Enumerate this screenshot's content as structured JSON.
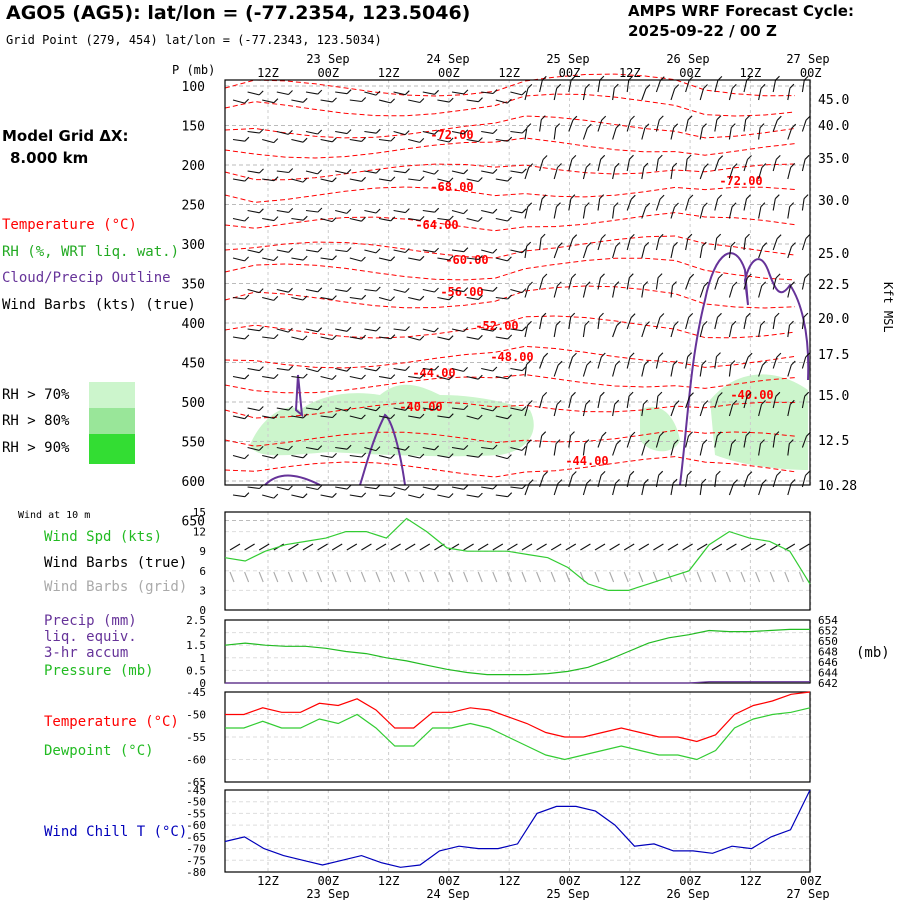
{
  "header": {
    "station": "AGO5 (AG5):  lat/lon = (-77.2354, 123.5046)",
    "gridpoint": "Grid Point (279, 454) lat/lon = (-77.2343, 123.5034)",
    "cycle_line1": "AMPS WRF Forecast Cycle:",
    "cycle_line2": "2025-09-22 / 00  Z"
  },
  "model": {
    "line1": "Model Grid ΔX:",
    "line2": "8.000 km"
  },
  "legend": {
    "temperature": "Temperature (°C)",
    "rh": "RH (%, WRT liq. wat.)",
    "cloud": "Cloud/Precip Outline",
    "wind": "Wind Barbs (kts) (true)",
    "rh70": "RH > 70%",
    "rh80": "RH > 80%",
    "rh90": "RH > 90%",
    "wind10m_title": "Wind at 10 m",
    "wind_spd": "Wind Spd (kts)",
    "wind_barbs_true": "Wind Barbs (true)",
    "wind_barbs_grid": "Wind Barbs (grid)",
    "precip1": "Precip (mm)",
    "precip2": "liq. equiv.",
    "precip3": "3-hr accum",
    "pressure": "Pressure (mb)",
    "mb_unit": "(mb)",
    "temp2": "Temperature (°C)",
    "dewpoint": "Dewpoint (°C)",
    "windchill": "Wind Chill T (°C)",
    "pmb_axis": "P (mb)",
    "kft_axis": "Kft MSL"
  },
  "colors": {
    "temperature": "#ff0000",
    "rh70": "#ccf5cc",
    "rh80": "#99e699",
    "rh90": "#33dd33",
    "cloud": "#663399",
    "wind_spd": "#33cc33",
    "grid_barbs": "#aaaaaa",
    "pressure": "#22bb22",
    "windchill": "#0000bb"
  },
  "time_axis": {
    "top_ticks": [
      "12Z",
      "00Z",
      "12Z",
      "00Z",
      "12Z",
      "00Z",
      "12Z",
      "00Z",
      "12Z",
      "00Z"
    ],
    "top_dates": [
      "23 Sep",
      "24 Sep",
      "25 Sep",
      "26 Sep",
      "27 Sep"
    ],
    "bottom_ticks": [
      "12Z",
      "00Z",
      "12Z",
      "00Z",
      "12Z",
      "00Z",
      "12Z",
      "00Z",
      "12Z",
      "00Z"
    ],
    "bottom_dates": [
      "23 Sep",
      "24 Sep",
      "25 Sep",
      "26 Sep",
      "27 Sep"
    ]
  },
  "chart_data": [
    {
      "type": "line",
      "name": "vertical profile",
      "p_levels": [
        "100",
        "150",
        "200",
        "250",
        "300",
        "350",
        "400",
        "450",
        "500",
        "550",
        "600",
        "650"
      ],
      "height_labels": [
        "45.0",
        "40.0",
        "35.0",
        "30.0",
        "25.0",
        "22.5",
        "20.0",
        "17.5",
        "15.0",
        "12.5",
        "10.28"
      ],
      "temperature_contour_labels": [
        "-72.00",
        "-68.00",
        "-64.00",
        "-60.00",
        "-56.00",
        "-52.00",
        "-48.00",
        "-44.00",
        "-40.00",
        "-44.00",
        "-72.00",
        "-40.00"
      ]
    },
    {
      "type": "line",
      "name": "10 m wind speed",
      "xlabel": "",
      "ylabel": "Wind Spd (kts)",
      "ylim": [
        0,
        15
      ],
      "yticks": [
        "15",
        "12",
        "9",
        "6",
        "3",
        "0"
      ],
      "values": [
        8,
        7.5,
        9,
        10,
        10.5,
        11,
        12,
        12,
        11,
        14,
        12,
        9.5,
        9,
        9,
        9,
        8.5,
        8,
        6.5,
        4,
        3,
        3,
        4,
        5,
        6,
        10,
        12,
        11,
        10.5,
        9,
        4
      ]
    },
    {
      "type": "line",
      "name": "precip and pressure",
      "precip_ylim": [
        0,
        2.5
      ],
      "precip_yticks": [
        "2.5",
        "2",
        "1.5",
        "1",
        "0.5",
        "0"
      ],
      "pressure_ylim": [
        642,
        654
      ],
      "pressure_yticks": [
        "654",
        "652",
        "650",
        "648",
        "646",
        "644",
        "642"
      ],
      "pressure": [
        649.2,
        649.6,
        649.2,
        649.0,
        649.0,
        648.6,
        648.0,
        647.6,
        646.8,
        646.2,
        645.4,
        644.6,
        644.0,
        643.6,
        643.6,
        643.6,
        643.8,
        644.2,
        645.0,
        646.4,
        648.0,
        649.6,
        650.6,
        651.2,
        652.0,
        651.8,
        651.8,
        652.0,
        652.2,
        652.2
      ],
      "precip": [
        0,
        0,
        0,
        0,
        0,
        0,
        0,
        0,
        0,
        0,
        0,
        0,
        0,
        0,
        0,
        0,
        0,
        0,
        0,
        0,
        0,
        0,
        0,
        0,
        0.05,
        0.05,
        0.05,
        0.05,
        0.05,
        0.05
      ]
    },
    {
      "type": "line",
      "name": "temperature and dewpoint",
      "ylim": [
        -65,
        -45
      ],
      "yticks": [
        "-45",
        "-50",
        "-55",
        "-60",
        "-65"
      ],
      "series": [
        {
          "name": "Temperature (°C)",
          "values": [
            -50,
            -50,
            -48.5,
            -49.5,
            -49.5,
            -47.5,
            -48,
            -46.5,
            -49,
            -53,
            -53,
            -49.5,
            -49.5,
            -48.5,
            -49,
            -50.5,
            -52,
            -54,
            -55,
            -55,
            -54,
            -53,
            -54,
            -55,
            -55,
            -56,
            -54.5,
            -50,
            -48,
            -47,
            -45.5,
            -45
          ]
        },
        {
          "name": "Dewpoint (°C)",
          "values": [
            -53,
            -53,
            -51.5,
            -53,
            -53,
            -51,
            -52,
            -50,
            -53,
            -57,
            -57,
            -53,
            -53,
            -52,
            -53,
            -55,
            -57,
            -59,
            -60,
            -59,
            -58,
            -57,
            -58,
            -59,
            -59,
            -60,
            -58,
            -53,
            -51,
            -50,
            -49.5,
            -48.5
          ]
        }
      ]
    },
    {
      "type": "line",
      "name": "wind chill",
      "ylim": [
        -80,
        -45
      ],
      "yticks": [
        "-45",
        "-50",
        "-55",
        "-60",
        "-65",
        "-70",
        "-75",
        "-80"
      ],
      "series": [
        {
          "name": "Wind Chill T (°C)",
          "values": [
            -67,
            -65,
            -70,
            -73,
            -75,
            -77,
            -75,
            -73,
            -76,
            -78,
            -77,
            -71,
            -69,
            -70,
            -70,
            -68,
            -55,
            -52,
            -52,
            -54,
            -60,
            -69,
            -68,
            -71,
            -71,
            -72,
            -69,
            -70,
            -65,
            -62,
            -45
          ]
        }
      ]
    }
  ]
}
